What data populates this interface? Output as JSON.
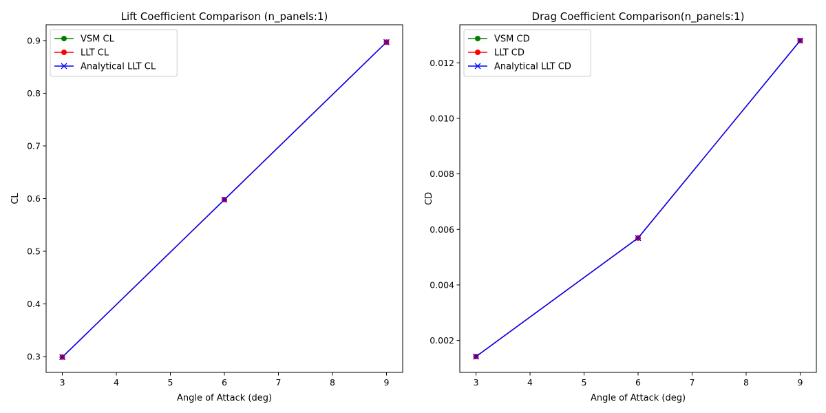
{
  "chart_data": [
    {
      "type": "line",
      "title": "Lift Coefficient Comparison (n_panels:1)",
      "xlabel": "Angle of Attack (deg)",
      "ylabel": "CL",
      "x": [
        3,
        6,
        9
      ],
      "xlim": [
        2.7,
        9.3
      ],
      "ylim": [
        0.27,
        0.93
      ],
      "xticks": [
        "3",
        "4",
        "5",
        "6",
        "7",
        "8",
        "9"
      ],
      "xtick_values": [
        3,
        4,
        5,
        6,
        7,
        8,
        9
      ],
      "yticks": [
        "0.3",
        "0.4",
        "0.5",
        "0.6",
        "0.7",
        "0.8",
        "0.9"
      ],
      "ytick_values": [
        0.3,
        0.4,
        0.5,
        0.6,
        0.7,
        0.8,
        0.9
      ],
      "legend_position": "top-left",
      "grid": false,
      "series": [
        {
          "name": "VSM CL",
          "color": "#008000",
          "marker": "circle",
          "values": [
            0.299,
            0.598,
            0.897
          ]
        },
        {
          "name": "LLT CL",
          "color": "#ff0000",
          "marker": "circle",
          "values": [
            0.299,
            0.598,
            0.897
          ]
        },
        {
          "name": "Analytical LLT CL",
          "color": "#0000ff",
          "marker": "x",
          "values": [
            0.299,
            0.598,
            0.897
          ]
        }
      ]
    },
    {
      "type": "line",
      "title": "Drag Coefficient Comparison(n_panels:1)",
      "xlabel": "Angle of Attack (deg)",
      "ylabel": "CD",
      "x": [
        3,
        6,
        9
      ],
      "xlim": [
        2.7,
        9.3
      ],
      "ylim": [
        0.00085,
        0.01337
      ],
      "xticks": [
        "3",
        "4",
        "5",
        "6",
        "7",
        "8",
        "9"
      ],
      "xtick_values": [
        3,
        4,
        5,
        6,
        7,
        8,
        9
      ],
      "yticks": [
        "0.002",
        "0.004",
        "0.006",
        "0.008",
        "0.010",
        "0.012"
      ],
      "ytick_values": [
        0.002,
        0.004,
        0.006,
        0.008,
        0.01,
        0.012
      ],
      "legend_position": "top-left",
      "grid": false,
      "series": [
        {
          "name": "VSM CD",
          "color": "#008000",
          "marker": "circle",
          "values": [
            0.00142,
            0.00569,
            0.0128
          ]
        },
        {
          "name": "LLT CD",
          "color": "#ff0000",
          "marker": "circle",
          "values": [
            0.00142,
            0.00569,
            0.0128
          ]
        },
        {
          "name": "Analytical LLT CD",
          "color": "#0000ff",
          "marker": "x",
          "values": [
            0.00142,
            0.00569,
            0.0128
          ]
        }
      ]
    }
  ]
}
